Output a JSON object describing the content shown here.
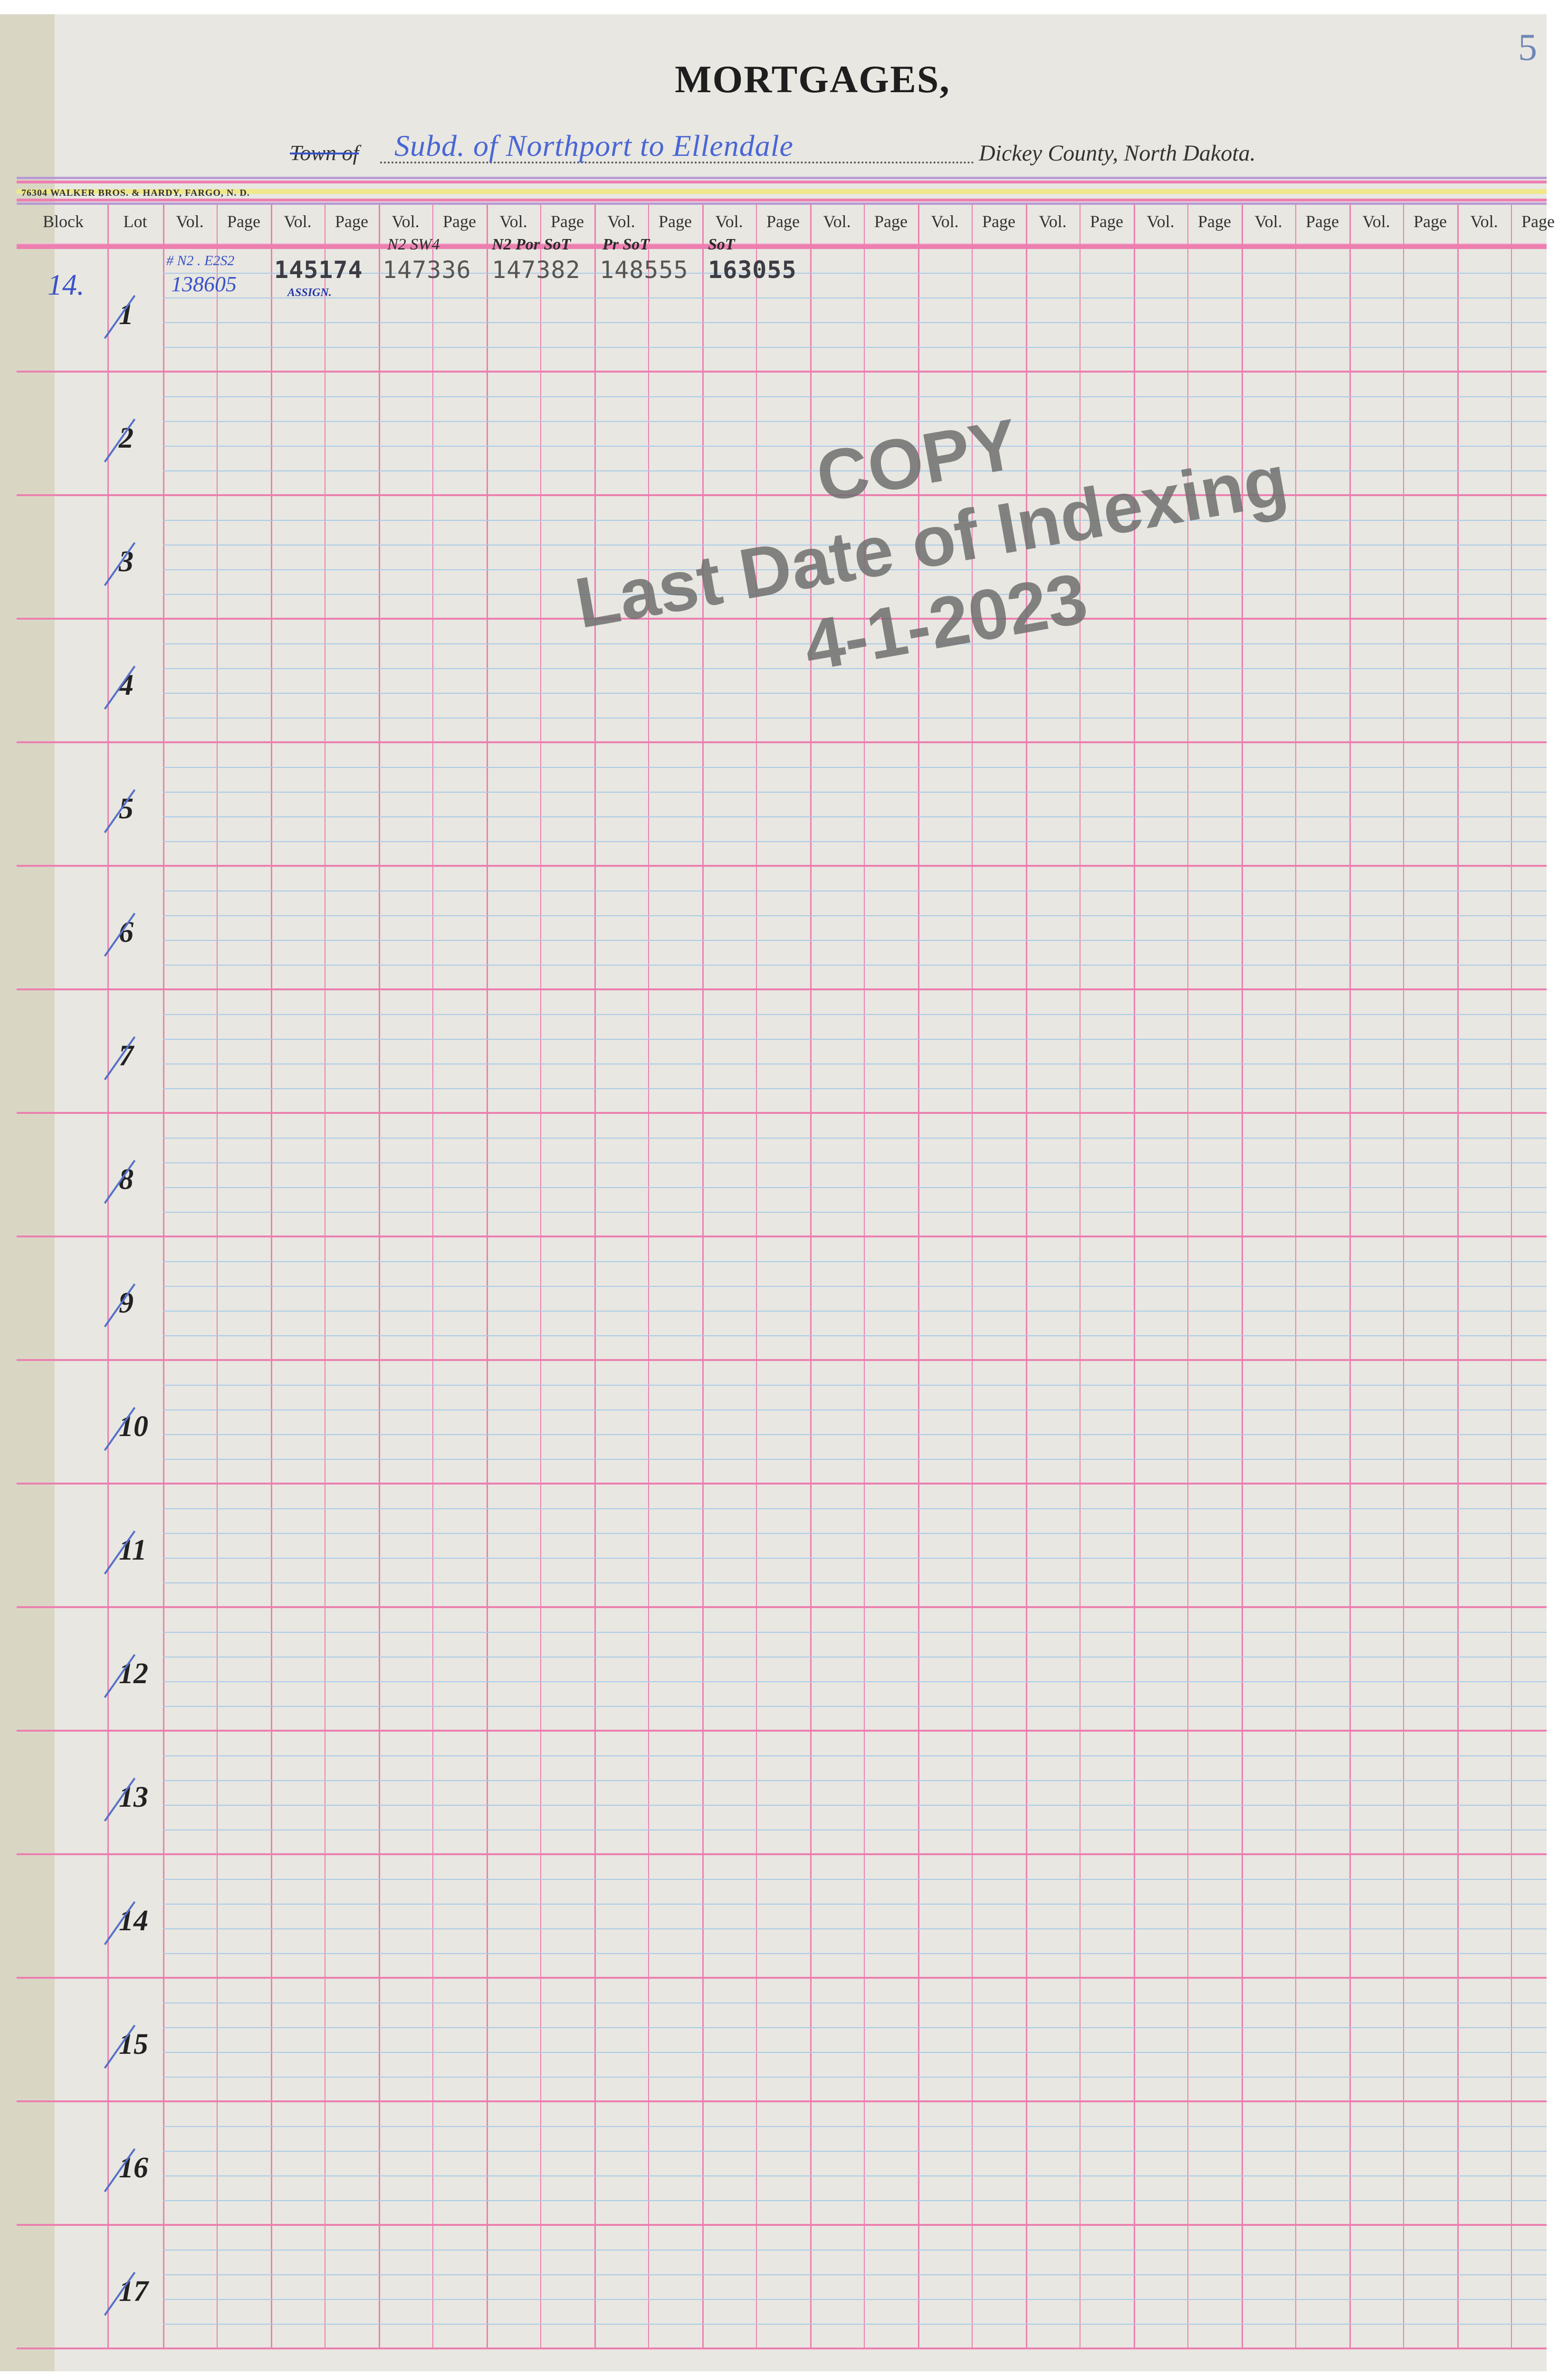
{
  "header": {
    "title": "MORTGAGES,",
    "page_number": "5",
    "town_label": "Town of",
    "town_value": "Subd. of Northport to Ellendale",
    "county": "Dickey County, North Dakota.",
    "printer": "76304  WALKER BROS. & HARDY, FARGO, N. D."
  },
  "columns": {
    "block": "Block",
    "lot": "Lot",
    "vol": "Vol.",
    "page": "Page",
    "pair_count": 13
  },
  "entries": {
    "block": "14.",
    "cells": [
      {
        "note": "# N2 . E2S2",
        "value": "138605",
        "handwritten": true
      },
      {
        "note": "ASSIGN.",
        "value": "145174"
      },
      {
        "note": "N2 SW4",
        "value": "147336"
      },
      {
        "note": "N2 Por SoT",
        "value": "147382"
      },
      {
        "note": "Pr SoT",
        "value": "148555"
      },
      {
        "note": "SoT",
        "value": "163055"
      }
    ]
  },
  "lots": [
    "1",
    "2",
    "3",
    "4",
    "5",
    "6",
    "7",
    "8",
    "9",
    "10",
    "11",
    "12",
    "13",
    "14",
    "15",
    "16",
    "17"
  ],
  "watermark": {
    "line1": "COPY",
    "line2": "Last Date of Indexing",
    "line3": "4-1-2023"
  },
  "colors": {
    "paper": "#e8e7e1",
    "rule_pink": "#ec7fb0",
    "rule_blue": "#a9c9e6",
    "ink_blue": "#3a52c8"
  }
}
